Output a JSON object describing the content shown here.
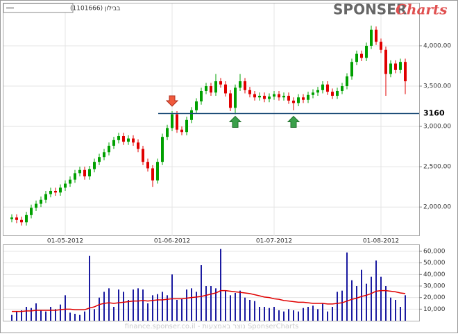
{
  "chart_data": [
    {
      "type": "candlestick",
      "series_name": "בבילון (1101666)",
      "logo": {
        "brand": "SPONSER",
        "suffix": "Charts"
      },
      "categories": [
        null,
        null,
        null,
        null,
        null,
        null,
        null,
        null,
        null,
        null,
        null,
        "01-05-2012",
        null,
        null,
        null,
        null,
        null,
        null,
        null,
        null,
        null,
        null,
        null,
        null,
        null,
        null,
        null,
        null,
        null,
        null,
        null,
        null,
        null,
        "01-06-2012",
        null,
        null,
        null,
        null,
        null,
        null,
        null,
        null,
        null,
        null,
        null,
        null,
        null,
        null,
        null,
        null,
        null,
        null,
        null,
        null,
        "01-07-2012",
        null,
        null,
        null,
        null,
        null,
        null,
        null,
        null,
        null,
        null,
        null,
        null,
        null,
        null,
        null,
        null,
        null,
        null,
        null,
        null,
        null,
        "01-08-2012",
        null,
        null,
        null,
        null,
        null
      ],
      "open": [
        1850,
        1870,
        1840,
        1810,
        1900,
        1990,
        2040,
        2090,
        2160,
        2200,
        2180,
        2240,
        2290,
        2340,
        2420,
        2460,
        2380,
        2470,
        2560,
        2620,
        2680,
        2760,
        2830,
        2880,
        2810,
        2850,
        2800,
        2720,
        2560,
        2480,
        2330,
        2560,
        2870,
        2980,
        3150,
        2960,
        2930,
        3080,
        3200,
        3310,
        3440,
        3500,
        3420,
        3560,
        3520,
        3410,
        3230,
        3480,
        3560,
        3450,
        3400,
        3360,
        3380,
        3340,
        3370,
        3400,
        3360,
        3380,
        3320,
        3290,
        3360,
        3330,
        3390,
        3420,
        3450,
        3520,
        3430,
        3380,
        3440,
        3500,
        3620,
        3800,
        3900,
        3850,
        4000,
        4200,
        4050,
        3950,
        3650,
        3780,
        3700,
        3800
      ],
      "high": [
        1910,
        1910,
        1880,
        1940,
        2030,
        2080,
        2130,
        2200,
        2240,
        2240,
        2280,
        2330,
        2380,
        2460,
        2500,
        2500,
        2510,
        2600,
        2660,
        2720,
        2800,
        2870,
        2920,
        2920,
        2890,
        2890,
        2840,
        2760,
        2600,
        2520,
        2600,
        2910,
        3020,
        3190,
        3190,
        3000,
        3120,
        3240,
        3350,
        3480,
        3540,
        3540,
        3650,
        3600,
        3560,
        3450,
        3520,
        3650,
        3600,
        3490,
        3440,
        3420,
        3420,
        3410,
        3440,
        3440,
        3420,
        3420,
        3360,
        3400,
        3400,
        3430,
        3460,
        3490,
        3560,
        3560,
        3470,
        3480,
        3540,
        3660,
        3840,
        3940,
        3940,
        4040,
        4250,
        4240,
        4090,
        3990,
        3820,
        3820,
        3840,
        3840
      ],
      "low": [
        1810,
        1800,
        1770,
        1770,
        1860,
        1950,
        2000,
        2050,
        2120,
        2140,
        2140,
        2200,
        2250,
        2300,
        2380,
        2340,
        2340,
        2430,
        2520,
        2580,
        2640,
        2720,
        2790,
        2770,
        2770,
        2760,
        2680,
        2520,
        2440,
        2250,
        2290,
        2520,
        2830,
        2940,
        2920,
        2890,
        2890,
        3040,
        3160,
        3270,
        3400,
        3380,
        3380,
        3480,
        3370,
        3190,
        3150,
        3440,
        3410,
        3360,
        3320,
        3320,
        3300,
        3300,
        3330,
        3320,
        3320,
        3280,
        3200,
        3250,
        3290,
        3290,
        3350,
        3380,
        3410,
        3390,
        3340,
        3340,
        3400,
        3460,
        3580,
        3760,
        3810,
        3810,
        3960,
        4010,
        3910,
        3380,
        3610,
        3660,
        3660,
        3400
      ],
      "close": [
        1870,
        1840,
        1810,
        1900,
        1990,
        2040,
        2090,
        2160,
        2200,
        2180,
        2240,
        2290,
        2340,
        2420,
        2460,
        2380,
        2470,
        2560,
        2620,
        2680,
        2760,
        2830,
        2880,
        2810,
        2850,
        2800,
        2720,
        2560,
        2480,
        2330,
        2560,
        2870,
        2980,
        3150,
        2960,
        2930,
        3080,
        3200,
        3310,
        3440,
        3500,
        3420,
        3560,
        3520,
        3410,
        3230,
        3480,
        3560,
        3450,
        3400,
        3360,
        3380,
        3340,
        3370,
        3400,
        3360,
        3380,
        3320,
        3290,
        3360,
        3330,
        3390,
        3420,
        3450,
        3520,
        3430,
        3380,
        3440,
        3500,
        3620,
        3800,
        3900,
        3850,
        4000,
        4200,
        4050,
        3950,
        3650,
        3780,
        3700,
        3800,
        3560
      ],
      "up_color": "#00a000",
      "down_color": "#e00000",
      "ylim": [
        1640,
        4525
      ],
      "yticks": [
        {
          "value": 2000,
          "label": "2,000.00"
        },
        {
          "value": 2500,
          "label": "2,500.00"
        },
        {
          "value": 3000,
          "label": "3,000.00"
        },
        {
          "value": 3500,
          "label": "3,500.00"
        },
        {
          "value": 4000,
          "label": "4,000.00"
        }
      ],
      "level": 3160,
      "level_color": "#1f4e79",
      "arrows": {
        "down": [
          33
        ],
        "up": [
          46,
          58
        ]
      },
      "grid": true
    },
    {
      "type": "bar",
      "series": [
        {
          "name": "volume",
          "color": "#1a1aa0",
          "values": [
            5000,
            8000,
            9000,
            12000,
            11000,
            15000,
            9000,
            8000,
            12000,
            10000,
            14000,
            22000,
            7000,
            6000,
            5000,
            8000,
            56000,
            10000,
            20000,
            25000,
            28000,
            12000,
            27000,
            25000,
            18000,
            27000,
            28000,
            27000,
            15000,
            22000,
            23000,
            25000,
            22000,
            40000,
            18000,
            19000,
            27000,
            28000,
            25000,
            48000,
            30000,
            30000,
            28000,
            62000,
            26000,
            22000,
            24000,
            26000,
            20000,
            18000,
            17000,
            12000,
            12000,
            11000,
            12000,
            9000,
            8000,
            10000,
            9000,
            8000,
            11000,
            12000,
            13000,
            10000,
            15000,
            8000,
            12000,
            25000,
            26000,
            59000,
            35000,
            30000,
            44000,
            32000,
            38000,
            52000,
            38000,
            30000,
            20000,
            18000,
            12000,
            22000
          ]
        },
        {
          "name": "average",
          "type": "line",
          "color": "#e00000",
          "values": [
            8000,
            8000,
            8000,
            8500,
            8500,
            9000,
            9000,
            9000,
            9000,
            9000,
            9500,
            10000,
            10000,
            9500,
            9500,
            9500,
            11000,
            12000,
            14000,
            15000,
            15500,
            15000,
            15500,
            16000,
            16500,
            17000,
            17000,
            17500,
            17000,
            17500,
            18000,
            18000,
            18500,
            19000,
            19000,
            19000,
            19500,
            20000,
            20500,
            21000,
            22000,
            23000,
            24000,
            26000,
            26000,
            25500,
            25000,
            24500,
            24000,
            23500,
            22500,
            21500,
            20500,
            20000,
            19000,
            18500,
            17500,
            17000,
            16500,
            16000,
            16000,
            15500,
            15000,
            15000,
            15000,
            14500,
            14500,
            15000,
            15500,
            17000,
            18500,
            19500,
            21000,
            22000,
            23500,
            25500,
            26000,
            26000,
            25500,
            25000,
            24000,
            23500
          ]
        }
      ],
      "ylim": [
        0,
        66000
      ],
      "yticks": [
        {
          "value": 10000,
          "label": "10,000"
        },
        {
          "value": 20000,
          "label": "20,000"
        },
        {
          "value": 30000,
          "label": "30,000"
        },
        {
          "value": 40000,
          "label": "40,000"
        },
        {
          "value": 50000,
          "label": "50,000"
        },
        {
          "value": 60000,
          "label": "60,000"
        }
      ],
      "grid": true,
      "watermark": "finance.sponser.co.il - נוצר באמצעות SponserCharts"
    }
  ]
}
